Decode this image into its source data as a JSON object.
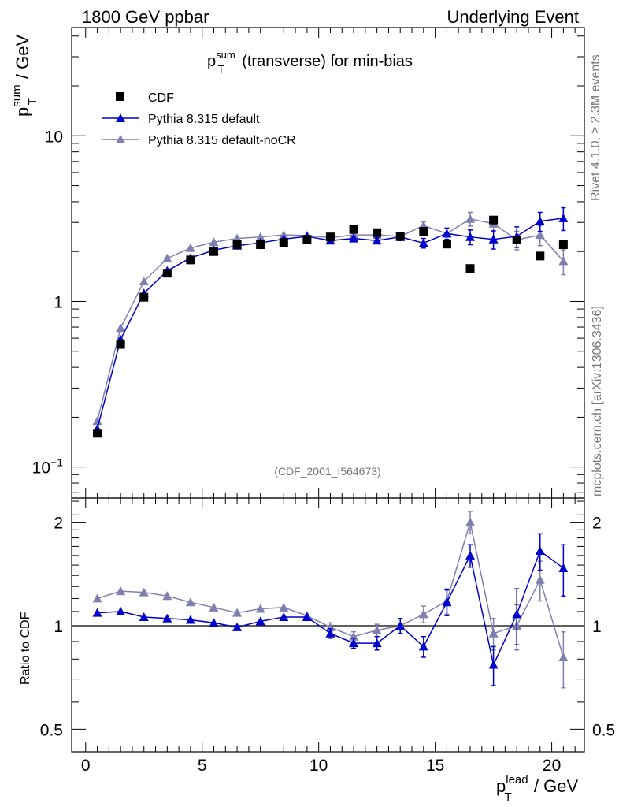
{
  "header": {
    "left": "1800 GeV ppbar",
    "right": "Underlying Event"
  },
  "side_labels": {
    "rivet": "Rivet 4.1.0, ≥ 2.3M events",
    "mcplots": "mcplots.cern.ch [arXiv:1306.3436]"
  },
  "chart_data": [
    {
      "type": "scatter",
      "panel": "main",
      "title_main": "p",
      "title_sup": "sum",
      "title_sub": "T",
      "title_rest": " (transverse) for min-bias",
      "ylabel_main": "p",
      "ylabel_sup": "sum",
      "ylabel_sub": "T",
      "ylabel_rest": " / GeV",
      "yscale": "log",
      "ylim": [
        0.065,
        45
      ],
      "xlim": [
        -0.6,
        21.4
      ],
      "ytick_labels": [
        {
          "value": 0.1,
          "base": "10",
          "exp": "−1"
        },
        {
          "value": 1,
          "base": "1",
          "exp": ""
        },
        {
          "value": 10,
          "base": "10",
          "exp": ""
        }
      ],
      "analysis_id": "(CDF_2001_I564673)",
      "legend_position": "top-left",
      "series": [
        {
          "name": "CDF",
          "marker": "square",
          "color": "#000000",
          "x": [
            0.5,
            1.5,
            2.5,
            3.5,
            4.5,
            5.5,
            6.5,
            7.5,
            8.5,
            9.5,
            10.5,
            11.5,
            12.5,
            13.5,
            14.5,
            15.5,
            16.5,
            17.5,
            18.5,
            19.5,
            20.5
          ],
          "y": [
            0.16,
            0.55,
            1.06,
            1.48,
            1.78,
            2.0,
            2.2,
            2.2,
            2.27,
            2.37,
            2.45,
            2.72,
            2.6,
            2.47,
            2.65,
            2.22,
            1.58,
            3.1,
            2.35,
            1.88,
            2.2
          ]
        },
        {
          "name": "Pythia 8.315 default",
          "marker": "triangle",
          "color": "#0000cc",
          "x": [
            0.5,
            1.5,
            2.5,
            3.5,
            4.5,
            5.5,
            6.5,
            7.5,
            8.5,
            9.5,
            10.5,
            11.5,
            12.5,
            13.5,
            14.5,
            15.5,
            16.5,
            17.5,
            18.5,
            19.5,
            20.5
          ],
          "y": [
            0.17,
            0.59,
            1.12,
            1.53,
            1.83,
            2.04,
            2.17,
            2.26,
            2.38,
            2.47,
            2.33,
            2.4,
            2.33,
            2.45,
            2.25,
            2.57,
            2.45,
            2.37,
            2.47,
            3.05,
            3.18
          ],
          "yerr": [
            0,
            0,
            0,
            0,
            0,
            0,
            0,
            0,
            0,
            0,
            0.07,
            0.08,
            0.09,
            0.12,
            0.15,
            0.2,
            0.25,
            0.3,
            0.35,
            0.4,
            0.5
          ]
        },
        {
          "name": "Pythia 8.315 default-noCR",
          "marker": "triangle",
          "color": "#8080b0",
          "x": [
            0.5,
            1.5,
            2.5,
            3.5,
            4.5,
            5.5,
            6.5,
            7.5,
            8.5,
            9.5,
            10.5,
            11.5,
            12.5,
            13.5,
            14.5,
            15.5,
            16.5,
            17.5,
            18.5,
            19.5,
            20.5
          ],
          "y": [
            0.19,
            0.69,
            1.32,
            1.82,
            2.1,
            2.28,
            2.4,
            2.45,
            2.52,
            2.5,
            2.43,
            2.52,
            2.52,
            2.47,
            2.87,
            2.57,
            3.15,
            2.95,
            2.35,
            2.52,
            1.75
          ],
          "yerr": [
            0,
            0,
            0,
            0,
            0,
            0,
            0,
            0,
            0,
            0,
            0.06,
            0.08,
            0.09,
            0.12,
            0.15,
            0.2,
            0.3,
            0.3,
            0.3,
            0.35,
            0.3
          ]
        }
      ]
    },
    {
      "type": "line",
      "panel": "ratio",
      "ylabel": "Ratio to CDF",
      "yscale": "log",
      "ylim": [
        0.43,
        2.35
      ],
      "xlim": [
        -0.6,
        21.4
      ],
      "reference_line": 1,
      "ytick_labels": [
        {
          "value": 0.5,
          "label": "0.5"
        },
        {
          "value": 1,
          "label": "1"
        },
        {
          "value": 2,
          "label": "2"
        }
      ],
      "xtick_labels": [
        {
          "value": 0,
          "label": "0"
        },
        {
          "value": 5,
          "label": "5"
        },
        {
          "value": 10,
          "label": "10"
        },
        {
          "value": 15,
          "label": "15"
        },
        {
          "value": 20,
          "label": "20"
        }
      ],
      "xlabel_main": "p",
      "xlabel_sup": "lead",
      "xlabel_sub": "T",
      "xlabel_rest": " / GeV",
      "series": [
        {
          "name": "Pythia 8.315 default",
          "color": "#0000cc",
          "x": [
            0.5,
            1.5,
            2.5,
            3.5,
            4.5,
            5.5,
            6.5,
            7.5,
            8.5,
            9.5,
            10.5,
            11.5,
            12.5,
            13.5,
            14.5,
            15.5,
            16.5,
            17.5,
            18.5,
            19.5,
            20.5
          ],
          "y": [
            1.09,
            1.1,
            1.06,
            1.05,
            1.04,
            1.02,
            0.99,
            1.03,
            1.06,
            1.06,
            0.95,
            0.89,
            0.89,
            1.0,
            0.87,
            1.17,
            1.6,
            0.77,
            1.08,
            1.65,
            1.47
          ],
          "yerr": [
            0,
            0,
            0,
            0,
            0,
            0,
            0,
            0,
            0,
            0,
            0.03,
            0.03,
            0.04,
            0.05,
            0.06,
            0.1,
            0.12,
            0.1,
            0.2,
            0.2,
            0.25
          ]
        },
        {
          "name": "Pythia 8.315 default-noCR",
          "color": "#8080b0",
          "x": [
            0.5,
            1.5,
            2.5,
            3.5,
            4.5,
            5.5,
            6.5,
            7.5,
            8.5,
            9.5,
            10.5,
            11.5,
            12.5,
            13.5,
            14.5,
            15.5,
            16.5,
            17.5,
            18.5,
            19.5,
            20.5
          ],
          "y": [
            1.2,
            1.26,
            1.25,
            1.22,
            1.17,
            1.13,
            1.09,
            1.12,
            1.13,
            1.07,
            0.99,
            0.93,
            0.97,
            1.0,
            1.08,
            1.18,
            2.0,
            0.95,
            1.0,
            1.36,
            0.81
          ],
          "yerr": [
            0,
            0,
            0,
            0,
            0,
            0,
            0,
            0,
            0,
            0,
            0.03,
            0.03,
            0.04,
            0.05,
            0.06,
            0.1,
            0.15,
            0.1,
            0.15,
            0.18,
            0.15
          ]
        }
      ]
    }
  ]
}
